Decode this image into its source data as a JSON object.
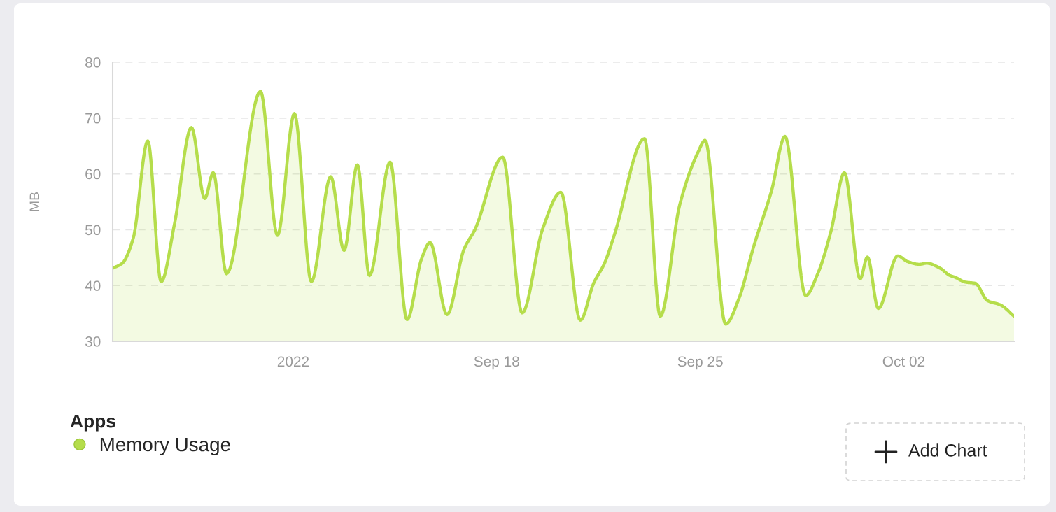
{
  "chart_data": {
    "type": "area",
    "ylabel": "MB",
    "legend_title": "Apps",
    "annotations": [
      "Add Chart"
    ],
    "x": [
      "2022-09-04T19:00",
      "2022-09-05T03:00",
      "2022-09-05T12:00",
      "2022-09-06T00:00",
      "2022-09-06T11:00",
      "2022-09-06T22:00",
      "2022-09-07T12:00",
      "2022-09-07T23:00",
      "2022-09-08T06:00",
      "2022-09-08T17:00",
      "2022-09-09T21:00",
      "2022-09-10T11:00",
      "2022-09-11T01:00",
      "2022-09-11T15:00",
      "2022-09-12T07:00",
      "2022-09-12T18:00",
      "2022-09-13T05:00",
      "2022-09-13T15:00",
      "2022-09-14T08:00",
      "2022-09-14T22:00",
      "2022-09-15T10:00",
      "2022-09-15T17:00",
      "2022-09-16T07:00",
      "2022-09-16T21:00",
      "2022-09-17T06:00",
      "2022-09-18T05:00",
      "2022-09-18T21:00",
      "2022-09-19T14:00",
      "2022-09-20T05:00",
      "2022-09-20T21:00",
      "2022-09-21T08:00",
      "2022-09-21T17:00",
      "2022-09-22T01:00",
      "2022-09-23T02:00",
      "2022-09-23T15:00",
      "2022-09-24T07:00",
      "2022-09-24T22:00",
      "2022-09-25T04:00",
      "2022-09-25T21:00",
      "2022-09-26T08:00",
      "2022-09-26T20:00",
      "2022-09-27T11:00",
      "2022-09-27T22:00",
      "2022-09-28T15:00",
      "2022-09-29T01:00",
      "2022-09-29T12:00",
      "2022-09-29T23:00",
      "2022-09-30T12:00",
      "2022-09-30T18:00",
      "2022-10-01T03:00",
      "2022-10-01T19:00",
      "2022-10-02T03:00",
      "2022-10-02T13:00",
      "2022-10-02T19:00",
      "2022-10-03T06:00",
      "2022-10-03T14:00",
      "2022-10-03T18:00",
      "2022-10-04T03:00",
      "2022-10-04T11:00",
      "2022-10-04T21:00",
      "2022-10-05T08:00",
      "2022-10-05T19:00"
    ],
    "series": [
      {
        "name": "Memory Usage",
        "color": "#b5dd4b",
        "values": [
          43.1,
          44.0,
          48.5,
          65.9,
          40.7,
          51.0,
          68.3,
          55.6,
          60.2,
          42.1,
          74.8,
          49.0,
          70.8,
          40.7,
          59.5,
          46.3,
          61.6,
          41.8,
          62.1,
          33.9,
          44.8,
          47.7,
          34.8,
          46.5,
          50.0,
          63.0,
          35.1,
          50.2,
          56.7,
          33.8,
          40.4,
          44.0,
          49.0,
          66.3,
          34.5,
          54.4,
          63.8,
          66.0,
          33.1,
          37.7,
          46.9,
          57.1,
          66.7,
          38.2,
          42.1,
          49.8,
          60.2,
          41.2,
          45.1,
          35.9,
          45.3,
          44.3,
          43.8,
          44.0,
          43.1,
          41.8,
          41.5,
          40.6,
          40.4,
          37.3,
          36.5,
          34.5
        ]
      }
    ],
    "xlim": [
      "2022-09-04T19:00",
      "2022-10-05T19:00"
    ],
    "xticks": [
      {
        "value": "2022-09-11",
        "label": "2022"
      },
      {
        "value": "2022-09-18",
        "label": "Sep 18"
      },
      {
        "value": "2022-09-25",
        "label": "Sep 25"
      },
      {
        "value": "2022-10-02",
        "label": "Oct 02"
      }
    ],
    "ylim": [
      30,
      80
    ],
    "yticks": [
      30,
      40,
      50,
      60,
      70,
      80
    ],
    "grid": "y",
    "legend": "bottom left"
  }
}
